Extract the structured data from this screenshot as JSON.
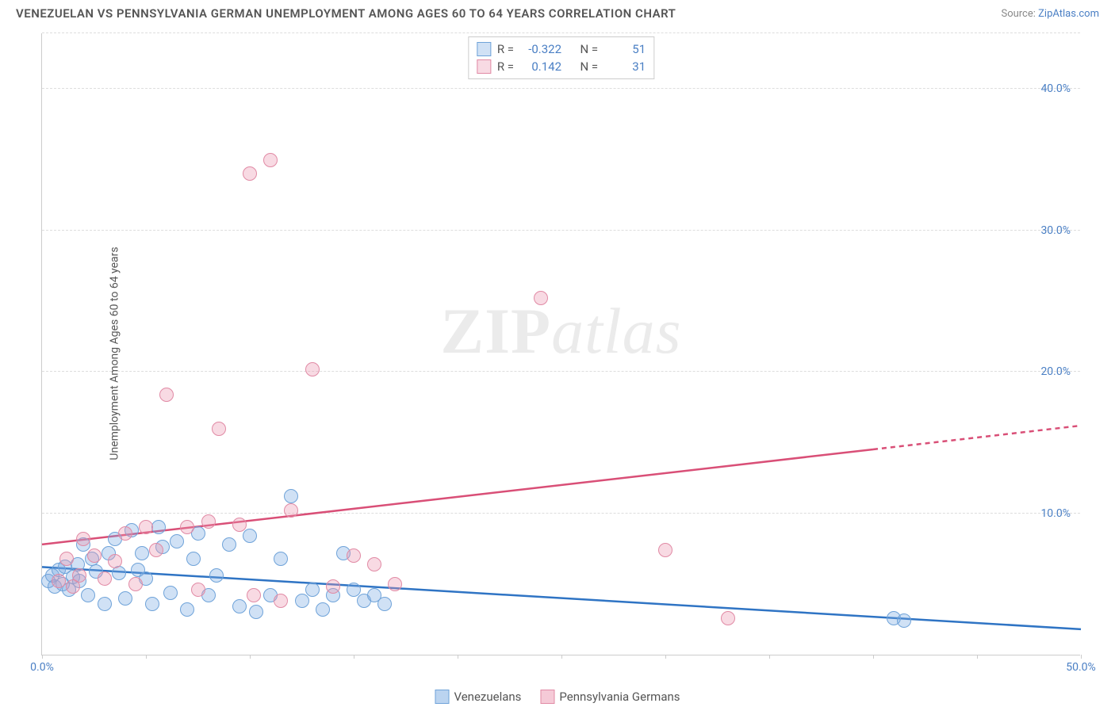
{
  "title": "VENEZUELAN VS PENNSYLVANIA GERMAN UNEMPLOYMENT AMONG AGES 60 TO 64 YEARS CORRELATION CHART",
  "source_prefix": "Source: ",
  "source_link": "ZipAtlas.com",
  "y_axis_label": "Unemployment Among Ages 60 to 64 years",
  "watermark_bold": "ZIP",
  "watermark_italic": "atlas",
  "chart": {
    "type": "scatter",
    "background_color": "#ffffff",
    "grid_color": "#dddddd",
    "axis_color": "#cccccc",
    "xlim": [
      0,
      50
    ],
    "ylim": [
      0,
      44
    ],
    "x_ticks": [
      0,
      5,
      10,
      15,
      20,
      25,
      30,
      35,
      40,
      45,
      50
    ],
    "x_tick_labels": {
      "0": "0.0%",
      "50": "50.0%"
    },
    "y_grid": [
      10,
      20,
      30,
      40
    ],
    "y_tick_labels": {
      "10": "10.0%",
      "20": "20.0%",
      "30": "30.0%",
      "40": "40.0%"
    },
    "y_tick_fontsize": 14,
    "y_tick_color": "#4a7fc4",
    "marker_radius": 9,
    "marker_border_width": 1.5,
    "series": [
      {
        "name": "Venezuelans",
        "fill": "rgba(120,170,225,0.35)",
        "stroke": "#6fa3d9",
        "trend": {
          "x1": 0,
          "y1": 6.2,
          "x2": 50,
          "y2": 1.8,
          "color": "#2f74c4",
          "width": 2.5,
          "dash_from_x": null
        },
        "stats": {
          "R": "-0.322",
          "N": "51"
        },
        "points": [
          [
            0.3,
            5.2
          ],
          [
            0.5,
            5.6
          ],
          [
            0.6,
            4.8
          ],
          [
            0.8,
            6.0
          ],
          [
            1.0,
            5.0
          ],
          [
            1.1,
            6.2
          ],
          [
            1.3,
            4.6
          ],
          [
            1.5,
            5.5
          ],
          [
            1.7,
            6.4
          ],
          [
            1.8,
            5.2
          ],
          [
            2.0,
            7.8
          ],
          [
            2.2,
            4.2
          ],
          [
            2.4,
            6.8
          ],
          [
            2.6,
            5.9
          ],
          [
            3.0,
            3.6
          ],
          [
            3.2,
            7.2
          ],
          [
            3.5,
            8.2
          ],
          [
            3.7,
            5.8
          ],
          [
            4.0,
            4.0
          ],
          [
            4.3,
            8.8
          ],
          [
            4.6,
            6.0
          ],
          [
            4.8,
            7.2
          ],
          [
            5.0,
            5.4
          ],
          [
            5.3,
            3.6
          ],
          [
            5.6,
            9.0
          ],
          [
            5.8,
            7.6
          ],
          [
            6.2,
            4.4
          ],
          [
            6.5,
            8.0
          ],
          [
            7.0,
            3.2
          ],
          [
            7.3,
            6.8
          ],
          [
            7.5,
            8.6
          ],
          [
            8.0,
            4.2
          ],
          [
            8.4,
            5.6
          ],
          [
            9.0,
            7.8
          ],
          [
            9.5,
            3.4
          ],
          [
            10.0,
            8.4
          ],
          [
            10.3,
            3.0
          ],
          [
            11.0,
            4.2
          ],
          [
            11.5,
            6.8
          ],
          [
            12.0,
            11.2
          ],
          [
            12.5,
            3.8
          ],
          [
            13.0,
            4.6
          ],
          [
            13.5,
            3.2
          ],
          [
            14.0,
            4.2
          ],
          [
            14.5,
            7.2
          ],
          [
            15.0,
            4.6
          ],
          [
            15.5,
            3.8
          ],
          [
            16.0,
            4.2
          ],
          [
            16.5,
            3.6
          ],
          [
            41.0,
            2.6
          ],
          [
            41.5,
            2.4
          ]
        ]
      },
      {
        "name": "Pennsylvania Germans",
        "fill": "rgba(235,150,175,0.35)",
        "stroke": "#e18aa5",
        "trend": {
          "x1": 0,
          "y1": 7.8,
          "x2": 50,
          "y2": 16.2,
          "color": "#d94f77",
          "width": 2.5,
          "dash_from_x": 40
        },
        "stats": {
          "R": "0.142",
          "N": "31"
        },
        "points": [
          [
            0.8,
            5.2
          ],
          [
            1.2,
            6.8
          ],
          [
            1.5,
            4.8
          ],
          [
            1.8,
            5.6
          ],
          [
            2.0,
            8.2
          ],
          [
            2.5,
            7.0
          ],
          [
            3.0,
            5.4
          ],
          [
            3.5,
            6.6
          ],
          [
            4.0,
            8.6
          ],
          [
            4.5,
            5.0
          ],
          [
            5.0,
            9.0
          ],
          [
            5.5,
            7.4
          ],
          [
            6.0,
            18.4
          ],
          [
            7.0,
            9.0
          ],
          [
            7.5,
            4.6
          ],
          [
            8.0,
            9.4
          ],
          [
            8.5,
            16.0
          ],
          [
            9.5,
            9.2
          ],
          [
            10.0,
            34.0
          ],
          [
            10.2,
            4.2
          ],
          [
            11.0,
            35.0
          ],
          [
            11.5,
            3.8
          ],
          [
            12.0,
            10.2
          ],
          [
            13.0,
            20.2
          ],
          [
            14.0,
            4.8
          ],
          [
            15.0,
            7.0
          ],
          [
            16.0,
            6.4
          ],
          [
            17.0,
            5.0
          ],
          [
            24.0,
            25.2
          ],
          [
            30.0,
            7.4
          ],
          [
            33.0,
            2.6
          ]
        ]
      }
    ]
  },
  "legend_top": {
    "r_label": "R =",
    "n_label": "N ="
  },
  "legend_bottom": [
    {
      "label": "Venezuelans",
      "fill": "rgba(120,170,225,0.5)",
      "stroke": "#6fa3d9"
    },
    {
      "label": "Pennsylvania Germans",
      "fill": "rgba(235,150,175,0.5)",
      "stroke": "#e18aa5"
    }
  ]
}
